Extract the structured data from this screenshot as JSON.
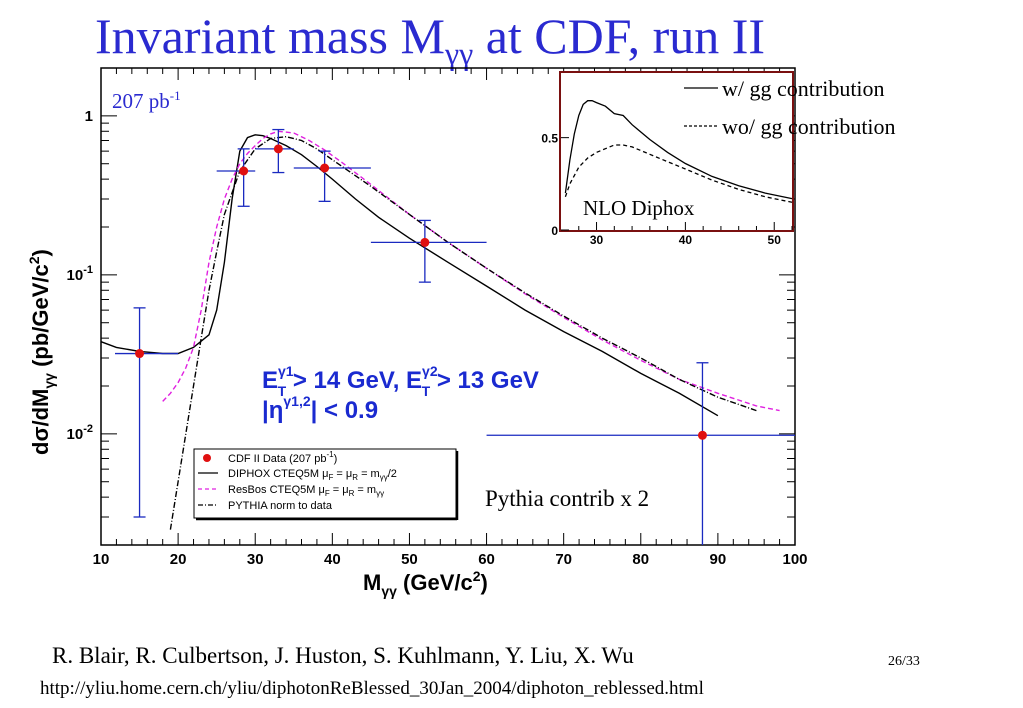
{
  "slide": {
    "title_main": "Invariant mass M",
    "title_sub": "γγ",
    "title_rest": " at CDF, run II",
    "authors": "R. Blair, R. Culbertson, J. Huston, S. Kuhlmann, Y. Liu, X. Wu",
    "url": "http://yliu.home.cern.ch/yliu/diphotonReBlessed_30Jan_2004/diphoton_reblessed.html",
    "page_number": "26/33"
  },
  "colors": {
    "title": "#2a2ad0",
    "data_points": "#e01010",
    "error_bars": "#1a2ac0",
    "diphox": "#000000",
    "resbos": "#e020e0",
    "pythia": "#000000",
    "cuts_text": "#1a2ad0"
  },
  "chart_data": [
    {
      "type": "line",
      "scale": "log-y",
      "xlim": [
        10,
        100
      ],
      "ylim": [
        0.002,
        2.0
      ],
      "x_ticks": [
        10,
        20,
        30,
        40,
        50,
        60,
        70,
        80,
        90,
        100
      ],
      "x_tick_labels": [
        "10",
        "20",
        "30",
        "40",
        "50",
        "60",
        "70",
        "80",
        "90",
        "100"
      ],
      "y_tick_labels": [
        {
          "value": 1,
          "base": "1",
          "exp": ""
        },
        {
          "value": 0.1,
          "base": "10",
          "exp": "-1"
        },
        {
          "value": 0.01,
          "base": "10",
          "exp": "-2"
        }
      ],
      "xlabel": {
        "prefix": "M",
        "sub": "γγ",
        "suffix": " (GeV/c",
        "sup": "2",
        "end": ")"
      },
      "ylabel": {
        "prefix": "dσ/dM",
        "sub": "γγ",
        "mid": "  (pb/GeV/c",
        "sup": "2",
        "end": ")"
      },
      "luminosity": {
        "text": "207 pb",
        "sup": "-1"
      },
      "cuts_line1": {
        "E": "E",
        "sup1": "γ1",
        "sub1": "T",
        "mid": " > 14 GeV, E",
        "sup2": "γ2",
        "sub2": "T",
        "end": " > 13 GeV"
      },
      "cuts_line2": {
        "pre": "|η",
        "sup": "γ1,2",
        "end": "| < 0.9"
      },
      "annotation": "Pythia contrib x 2",
      "legend": {
        "position": "lower-middle",
        "entries": [
          {
            "label": "CDF II Data (207 pb",
            "sup": "-1",
            "end": ")"
          },
          {
            "label": "DIPHOX CTEQ5M μ",
            "sub1": "F",
            "mid1": " = μ",
            "sub2": "R",
            "mid2": " = m",
            "sub3": "γγ",
            "end": "/2"
          },
          {
            "label": "ResBos CTEQ5M μ",
            "sub1": "F",
            "mid1": " = μ",
            "sub2": "R",
            "mid2": " = m",
            "sub3": "γγ",
            "end": ""
          },
          {
            "label": "PYTHIA norm to data",
            "sub1": "",
            "mid1": "",
            "sub2": "",
            "mid2": "",
            "sub3": "",
            "end": ""
          }
        ]
      },
      "data_points": [
        {
          "x": 15,
          "y": 0.032,
          "xerr": [
            10,
            20
          ],
          "yerr": [
            0.003,
            0.062
          ]
        },
        {
          "x": 28.5,
          "y": 0.45,
          "xerr": [
            25,
            30
          ],
          "yerr": [
            0.27,
            0.62
          ]
        },
        {
          "x": 33,
          "y": 0.62,
          "xerr": [
            30,
            35
          ],
          "yerr": [
            0.44,
            0.82
          ]
        },
        {
          "x": 39,
          "y": 0.47,
          "xerr": [
            35,
            45
          ],
          "yerr": [
            0.29,
            0.6
          ]
        },
        {
          "x": 52,
          "y": 0.16,
          "xerr": [
            45,
            60
          ],
          "yerr": [
            0.09,
            0.22
          ]
        },
        {
          "x": 88,
          "y": 0.0098,
          "xerr": [
            60,
            100
          ],
          "yerr": [
            0.0002,
            0.028
          ]
        }
      ],
      "series": [
        {
          "name": "DIPHOX CTEQ5M",
          "x": [
            10,
            12,
            15,
            18,
            20,
            22,
            24,
            25,
            26,
            27,
            28,
            29,
            30,
            31,
            32,
            34,
            36,
            38,
            40,
            43,
            46,
            50,
            55,
            60,
            65,
            70,
            75,
            80,
            85,
            90
          ],
          "y": [
            0.038,
            0.035,
            0.033,
            0.032,
            0.032,
            0.035,
            0.042,
            0.06,
            0.12,
            0.3,
            0.6,
            0.73,
            0.76,
            0.75,
            0.72,
            0.65,
            0.57,
            0.48,
            0.4,
            0.3,
            0.23,
            0.17,
            0.12,
            0.085,
            0.06,
            0.044,
            0.033,
            0.024,
            0.018,
            0.013
          ]
        },
        {
          "name": "ResBos CTEQ5M",
          "x": [
            18,
            19,
            20,
            21,
            22,
            23,
            24,
            25,
            26,
            27,
            28,
            29,
            30,
            31,
            32,
            33,
            35,
            37,
            39,
            41,
            45,
            50,
            55,
            60,
            65,
            70,
            75,
            80,
            85,
            90,
            95,
            98
          ],
          "y": [
            0.016,
            0.018,
            0.021,
            0.026,
            0.035,
            0.06,
            0.12,
            0.2,
            0.3,
            0.4,
            0.5,
            0.58,
            0.65,
            0.72,
            0.77,
            0.8,
            0.78,
            0.7,
            0.61,
            0.52,
            0.37,
            0.24,
            0.16,
            0.11,
            0.076,
            0.054,
            0.039,
            0.029,
            0.022,
            0.018,
            0.015,
            0.014
          ]
        },
        {
          "name": "PYTHIA norm to data",
          "x": [
            19,
            20,
            21,
            22,
            23,
            24,
            25,
            26,
            28,
            30,
            32,
            34,
            36,
            38,
            40,
            45,
            50,
            55,
            60,
            65,
            70,
            75,
            80,
            85,
            90,
            95
          ],
          "y": [
            0.0025,
            0.005,
            0.01,
            0.02,
            0.04,
            0.08,
            0.14,
            0.24,
            0.45,
            0.62,
            0.72,
            0.74,
            0.7,
            0.62,
            0.53,
            0.36,
            0.24,
            0.16,
            0.11,
            0.077,
            0.055,
            0.04,
            0.03,
            0.022,
            0.017,
            0.014
          ]
        }
      ]
    },
    {
      "type": "line",
      "title": "NLO Diphox",
      "xlim": [
        26,
        52
      ],
      "ylim": [
        0,
        0.85
      ],
      "x_tick_labels": [
        {
          "value": 30,
          "label": "30"
        },
        {
          "value": 40,
          "label": "40"
        },
        {
          "value": 50,
          "label": "50"
        }
      ],
      "y_tick_labels": [
        {
          "value": 0,
          "label": "0"
        },
        {
          "value": 0.5,
          "label": "0.5"
        }
      ],
      "legend": {
        "position": "top-right",
        "entries": [
          {
            "label": "w/ gg contribution",
            "style": "solid"
          },
          {
            "label": "wo/ gg contribution",
            "style": "dashed"
          }
        ]
      },
      "series": [
        {
          "name": "w/ gg contribution",
          "x": [
            26.5,
            27,
            27.5,
            28,
            28.5,
            29,
            29.5,
            30,
            31,
            32,
            33,
            34,
            36,
            38,
            40,
            43,
            46,
            49,
            52
          ],
          "y": [
            0.2,
            0.38,
            0.52,
            0.62,
            0.68,
            0.7,
            0.7,
            0.69,
            0.67,
            0.63,
            0.62,
            0.57,
            0.49,
            0.42,
            0.36,
            0.29,
            0.24,
            0.2,
            0.17
          ]
        },
        {
          "name": "wo/ gg contribution",
          "x": [
            26.5,
            27,
            28,
            29,
            30,
            31,
            32,
            33,
            34,
            36,
            38,
            40,
            43,
            46,
            49,
            52
          ],
          "y": [
            0.18,
            0.25,
            0.34,
            0.39,
            0.42,
            0.44,
            0.46,
            0.46,
            0.45,
            0.41,
            0.37,
            0.33,
            0.27,
            0.22,
            0.18,
            0.15
          ]
        }
      ]
    }
  ]
}
